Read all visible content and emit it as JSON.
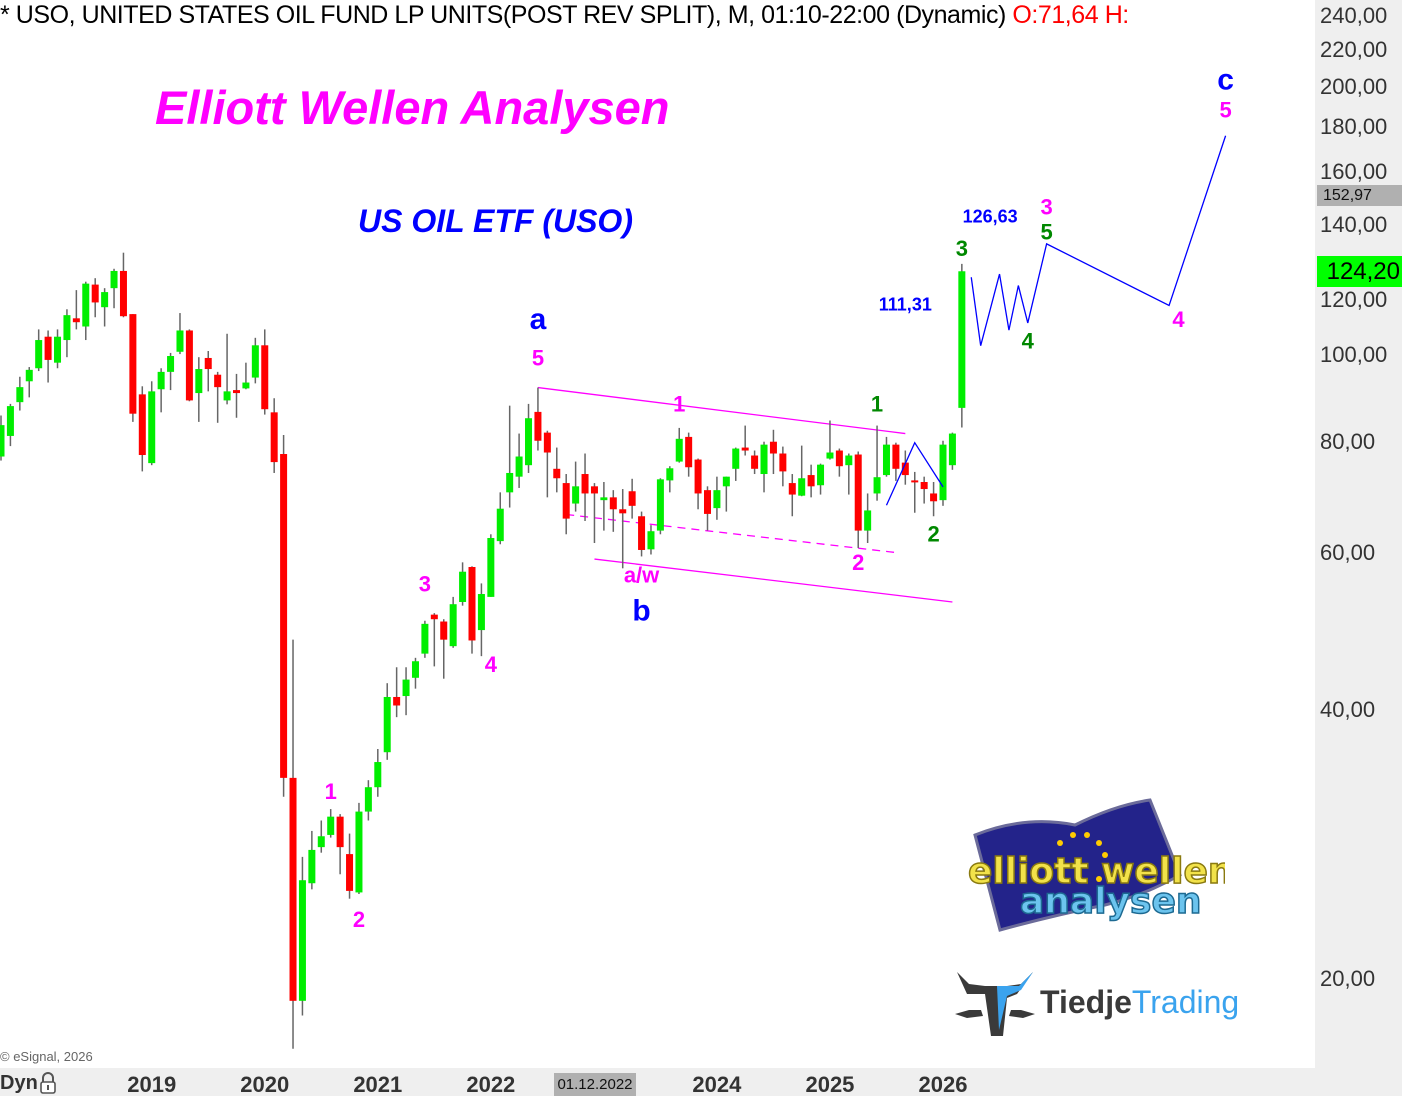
{
  "header": {
    "title": "* USO, UNITED STATES OIL FUND LP UNITS(POST REV SPLIT), M, 01:10-22:00 (Dynamic) ",
    "ohlc_text": "O:71,64 H:"
  },
  "titles": {
    "main": "Elliott Wellen Analysen",
    "sub": "US OIL ETF (USO)"
  },
  "copyright": "© eSignal, 2026",
  "footer": {
    "dyn_label": "Dyn",
    "lock_icon": "lock-icon"
  },
  "crosshair": {
    "price": "152,97",
    "date": "01.12.2022"
  },
  "last_price": "124,20",
  "logos": {
    "elliott": "elliott wellen analysen",
    "tiedje_a": "Tiedje",
    "tiedje_b": "Trading"
  },
  "colors": {
    "up": "#00ee00",
    "down": "#ff0000",
    "wick": "#666666",
    "wave_magenta": "#ff00ff",
    "wave_blue": "#0000ff",
    "wave_green": "#008800",
    "last_price_bg": "#00ff00"
  },
  "chart_data": {
    "type": "candlestick",
    "interval": "monthly",
    "y_scale": "log",
    "ylim": [
      15.5,
      250
    ],
    "yticks": [
      "240,00",
      "220,00",
      "200,00",
      "180,00",
      "160,00",
      "140,00",
      "120,00",
      "100,00",
      "80,00",
      "60,00",
      "40,00",
      "20,00"
    ],
    "ytick_values": [
      240,
      220,
      200,
      180,
      160,
      140,
      120,
      100,
      80,
      60,
      40,
      20
    ],
    "xticks": [
      {
        "label": "2019",
        "date": "2019-01"
      },
      {
        "label": "2020",
        "date": "2020-01"
      },
      {
        "label": "2021",
        "date": "2021-01"
      },
      {
        "label": "2022",
        "date": "2022-01"
      },
      {
        "label": "2024",
        "date": "2024-01"
      },
      {
        "label": "2025",
        "date": "2025-01"
      },
      {
        "label": "2026",
        "date": "2026-01"
      }
    ],
    "columns": [
      "date",
      "open",
      "high",
      "low",
      "close"
    ],
    "candles": [
      [
        "2017-09",
        77.0,
        85.6,
        76.2,
        83.5
      ],
      [
        "2017-10",
        81.2,
        88.2,
        79.1,
        87.7
      ],
      [
        "2017-11",
        88.6,
        94.6,
        86.7,
        92.1
      ],
      [
        "2017-12",
        93.5,
        97.0,
        89.7,
        96.3
      ],
      [
        "2018-01",
        96.7,
        106.9,
        96.0,
        104.0
      ],
      [
        "2018-02",
        104.9,
        106.6,
        93.2,
        98.8
      ],
      [
        "2018-03",
        98.1,
        106.9,
        96.7,
        104.9
      ],
      [
        "2018-04",
        104.0,
        112.6,
        99.5,
        110.9
      ],
      [
        "2018-05",
        110.0,
        118.3,
        106.9,
        108.9
      ],
      [
        "2018-06",
        107.7,
        120.9,
        104.0,
        120.3
      ],
      [
        "2018-07",
        120.0,
        122.0,
        110.3,
        114.6
      ],
      [
        "2018-08",
        113.2,
        118.9,
        107.7,
        117.7
      ],
      [
        "2018-09",
        118.9,
        125.0,
        112.9,
        124.3
      ],
      [
        "2018-10",
        124.3,
        130.3,
        110.3,
        110.6
      ],
      [
        "2018-11",
        111.2,
        111.2,
        84.2,
        86.0
      ],
      [
        "2018-12",
        90.4,
        92.3,
        74.1,
        77.3
      ],
      [
        "2019-01",
        75.7,
        93.5,
        75.3,
        91.1
      ],
      [
        "2019-02",
        91.6,
        96.7,
        86.3,
        95.8
      ],
      [
        "2019-03",
        95.8,
        100.6,
        91.4,
        99.8
      ],
      [
        "2019-04",
        100.9,
        111.5,
        100.3,
        106.6
      ],
      [
        "2019-05",
        106.6,
        106.9,
        88.8,
        89.0
      ],
      [
        "2019-06",
        90.7,
        99.5,
        84.2,
        96.5
      ],
      [
        "2019-07",
        99.3,
        101.1,
        91.1,
        96.5
      ],
      [
        "2019-08",
        95.1,
        95.8,
        84.0,
        92.1
      ],
      [
        "2019-09",
        89.0,
        105.7,
        88.1,
        91.1
      ],
      [
        "2019-10",
        91.4,
        95.3,
        85.1,
        90.7
      ],
      [
        "2019-11",
        91.8,
        98.1,
        91.6,
        93.2
      ],
      [
        "2019-12",
        94.4,
        104.6,
        93.0,
        102.6
      ],
      [
        "2020-01",
        102.6,
        106.9,
        85.8,
        87.0
      ],
      [
        "2020-02",
        86.3,
        89.5,
        73.8,
        75.9
      ],
      [
        "2020-03",
        77.5,
        81.4,
        32.0,
        33.6
      ],
      [
        "2020-04",
        33.6,
        48.0,
        16.7,
        18.9
      ],
      [
        "2020-05",
        18.9,
        27.4,
        18.2,
        25.8
      ],
      [
        "2020-06",
        25.6,
        29.3,
        25.2,
        27.9
      ],
      [
        "2020-07",
        28.1,
        30.1,
        27.7,
        28.9
      ],
      [
        "2020-08",
        29.0,
        31.0,
        28.8,
        30.4
      ],
      [
        "2020-09",
        30.4,
        30.6,
        26.2,
        28.1
      ],
      [
        "2020-10",
        27.6,
        29.1,
        24.6,
        25.1
      ],
      [
        "2020-11",
        25.0,
        31.5,
        24.9,
        30.8
      ],
      [
        "2020-12",
        30.8,
        33.4,
        30.1,
        32.8
      ],
      [
        "2021-01",
        32.8,
        36.2,
        32.0,
        35.0
      ],
      [
        "2021-02",
        35.9,
        42.9,
        35.2,
        41.4
      ],
      [
        "2021-03",
        41.4,
        44.7,
        39.3,
        40.5
      ],
      [
        "2021-04",
        41.5,
        44.7,
        39.5,
        43.3
      ],
      [
        "2021-05",
        43.5,
        45.8,
        42.3,
        45.4
      ],
      [
        "2021-06",
        46.3,
        50.4,
        45.8,
        50.0
      ],
      [
        "2021-07",
        51.2,
        51.4,
        44.8,
        50.6
      ],
      [
        "2021-08",
        50.3,
        50.6,
        43.4,
        48.0
      ],
      [
        "2021-09",
        47.2,
        53.6,
        47.0,
        52.6
      ],
      [
        "2021-10",
        52.9,
        58.6,
        52.4,
        57.2
      ],
      [
        "2021-11",
        57.9,
        58.0,
        46.3,
        47.9
      ],
      [
        "2021-12",
        49.2,
        55.5,
        46.0,
        54.0
      ],
      [
        "2022-01",
        53.6,
        63.0,
        53.6,
        62.4
      ],
      [
        "2022-02",
        61.9,
        70.2,
        61.4,
        67.3
      ],
      [
        "2022-03",
        70.2,
        87.8,
        67.5,
        73.8
      ],
      [
        "2022-04",
        73.1,
        81.7,
        71.0,
        77.0
      ],
      [
        "2022-05",
        75.3,
        88.2,
        73.8,
        85.0
      ],
      [
        "2022-06",
        86.4,
        92.0,
        78.2,
        80.2
      ],
      [
        "2022-07",
        81.9,
        82.3,
        69.3,
        77.8
      ],
      [
        "2022-08",
        74.6,
        78.8,
        70.2,
        72.8
      ],
      [
        "2022-09",
        71.9,
        73.6,
        63.0,
        65.6
      ],
      [
        "2022-10",
        68.2,
        76.0,
        66.8,
        71.3
      ],
      [
        "2022-11",
        73.6,
        77.6,
        65.2,
        70.0
      ],
      [
        "2022-12",
        71.3,
        71.9,
        61.6,
        70.0
      ],
      [
        "2023-01",
        68.8,
        72.1,
        63.6,
        69.3
      ],
      [
        "2023-02",
        69.3,
        70.6,
        63.4,
        67.2
      ],
      [
        "2023-03",
        67.2,
        70.8,
        57.7,
        66.5
      ],
      [
        "2023-04",
        70.4,
        72.7,
        65.6,
        67.8
      ],
      [
        "2023-05",
        66.0,
        66.8,
        59.5,
        60.5
      ],
      [
        "2023-06",
        60.6,
        64.5,
        59.8,
        63.5
      ],
      [
        "2023-07",
        63.6,
        72.8,
        63.0,
        72.6
      ],
      [
        "2023-08",
        72.4,
        75.1,
        70.2,
        74.7
      ],
      [
        "2023-09",
        76.0,
        82.9,
        75.8,
        80.6
      ],
      [
        "2023-10",
        81.0,
        81.9,
        73.1,
        74.9
      ],
      [
        "2023-11",
        76.4,
        76.6,
        67.2,
        70.0
      ],
      [
        "2023-12",
        70.6,
        71.3,
        63.6,
        66.4
      ],
      [
        "2024-01",
        67.4,
        73.1,
        65.4,
        70.6
      ],
      [
        "2024-02",
        71.3,
        73.1,
        66.8,
        73.1
      ],
      [
        "2024-03",
        74.6,
        78.8,
        72.3,
        78.6
      ],
      [
        "2024-04",
        78.8,
        83.4,
        77.2,
        78.2
      ],
      [
        "2024-05",
        77.2,
        78.2,
        73.6,
        74.6
      ],
      [
        "2024-06",
        73.6,
        80.0,
        70.2,
        79.4
      ],
      [
        "2024-07",
        80.0,
        82.5,
        73.6,
        77.6
      ],
      [
        "2024-08",
        77.6,
        79.0,
        71.3,
        74.1
      ],
      [
        "2024-09",
        71.9,
        73.6,
        66.0,
        69.8
      ],
      [
        "2024-10",
        69.6,
        79.2,
        69.5,
        72.8
      ],
      [
        "2024-11",
        73.4,
        75.4,
        69.3,
        71.3
      ],
      [
        "2024-12",
        71.5,
        75.6,
        69.8,
        75.4
      ],
      [
        "2025-01",
        76.6,
        84.5,
        76.4,
        77.8
      ],
      [
        "2025-02",
        78.2,
        78.6,
        73.1,
        75.1
      ],
      [
        "2025-03",
        75.3,
        77.6,
        69.8,
        77.2
      ],
      [
        "2025-04",
        77.4,
        78.0,
        60.8,
        63.6
      ],
      [
        "2025-05",
        63.6,
        70.0,
        61.6,
        67.0
      ],
      [
        "2025-06",
        70.0,
        83.4,
        68.7,
        73.0
      ],
      [
        "2025-07",
        73.4,
        81.0,
        73.1,
        79.4
      ],
      [
        "2025-08",
        79.4,
        79.8,
        72.3,
        74.6
      ],
      [
        "2025-09",
        75.8,
        78.2,
        71.6,
        73.4
      ],
      [
        "2025-10",
        72.4,
        74.0,
        66.6,
        72.1
      ],
      [
        "2025-11",
        72.1,
        73.1,
        68.2,
        70.8
      ],
      [
        "2025-12",
        70.0,
        72.1,
        66.0,
        68.6
      ],
      [
        "2026-01",
        68.8,
        80.2,
        67.8,
        79.4
      ],
      [
        "2026-02",
        75.3,
        81.9,
        74.4,
        81.7
      ],
      [
        "2026-03",
        87.3,
        126.6,
        83.0,
        124.2
      ]
    ],
    "trendlines": [
      {
        "style": "solid",
        "color": "#ff00ff",
        "points": [
          [
            "2022-06",
            92.0
          ],
          [
            "2025-09",
            81.7
          ]
        ]
      },
      {
        "style": "dashed",
        "color": "#ff00ff",
        "points": [
          [
            "2022-09",
            66.3
          ],
          [
            "2025-08",
            60.1
          ]
        ]
      },
      {
        "style": "solid",
        "color": "#ff00ff",
        "points": [
          [
            "2022-12",
            59.1
          ],
          [
            "2026-02",
            52.9
          ]
        ]
      }
    ],
    "projections": [
      {
        "color": "#0000ff",
        "points": [
          [
            "2025-07",
            67.9
          ],
          [
            "2025-10",
            79.8
          ],
          [
            "2026-01",
            71.2
          ]
        ]
      },
      {
        "color": "#0000ff",
        "points": [
          [
            "2026-04",
            122.3
          ],
          [
            "2026-05",
            102.5
          ],
          [
            "2026-07",
            123.3
          ],
          [
            "2026-08",
            106.7
          ],
          [
            "2026-09",
            119.7
          ],
          [
            "2026-10",
            108.7
          ],
          [
            "2026-12",
            133.3
          ],
          [
            "2028-01",
            113.7
          ],
          [
            "2028-07",
            176.2
          ]
        ]
      }
    ],
    "annotations": [
      {
        "text": "1",
        "color": "#ff00ff",
        "date": "2020-08",
        "price": 32.3
      },
      {
        "text": "2",
        "color": "#ff00ff",
        "date": "2020-11",
        "price": 23.2
      },
      {
        "text": "3",
        "color": "#ff00ff",
        "date": "2021-06",
        "price": 55.2
      },
      {
        "text": "4",
        "color": "#ff00ff",
        "date": "2022-01",
        "price": 44.8
      },
      {
        "text": "5",
        "color": "#ff00ff",
        "date": "2022-06",
        "price": 98.8
      },
      {
        "text": "a",
        "color": "#0000ff",
        "date": "2022-06",
        "price": 109.2,
        "big": true
      },
      {
        "text": "1",
        "color": "#ff00ff",
        "date": "2023-09",
        "price": 87.8
      },
      {
        "text": "a/w",
        "color": "#ff00ff",
        "date": "2023-05",
        "price": 56.5
      },
      {
        "text": "b",
        "color": "#0000ff",
        "date": "2023-05",
        "price": 51.5,
        "big": true
      },
      {
        "text": "2",
        "color": "#ff00ff",
        "date": "2025-04",
        "price": 58.3
      },
      {
        "text": "1",
        "color": "#008800",
        "date": "2025-06",
        "price": 87.8
      },
      {
        "text": "2",
        "color": "#008800",
        "date": "2025-12",
        "price": 62.8
      },
      {
        "text": "3",
        "color": "#008800",
        "date": "2026-03",
        "price": 131.1
      },
      {
        "text": "126,63",
        "color": "#0000ff",
        "date": "2026-06",
        "price": 142.6,
        "small": true
      },
      {
        "text": "111,31",
        "color": "#0000ff",
        "date": "2025-09",
        "price": 113.6,
        "small": true
      },
      {
        "text": "3",
        "color": "#ff00ff",
        "date": "2026-12",
        "price": 146.0
      },
      {
        "text": "5",
        "color": "#008800",
        "date": "2026-12",
        "price": 136.8
      },
      {
        "text": "4",
        "color": "#008800",
        "date": "2026-10",
        "price": 103.3
      },
      {
        "text": "4",
        "color": "#ff00ff",
        "date": "2028-02",
        "price": 109.2
      },
      {
        "text": "5",
        "color": "#ff00ff",
        "date": "2028-07",
        "price": 187.4
      },
      {
        "text": "c",
        "color": "#0000ff",
        "date": "2028-07",
        "price": 202.6,
        "big": true
      }
    ]
  }
}
